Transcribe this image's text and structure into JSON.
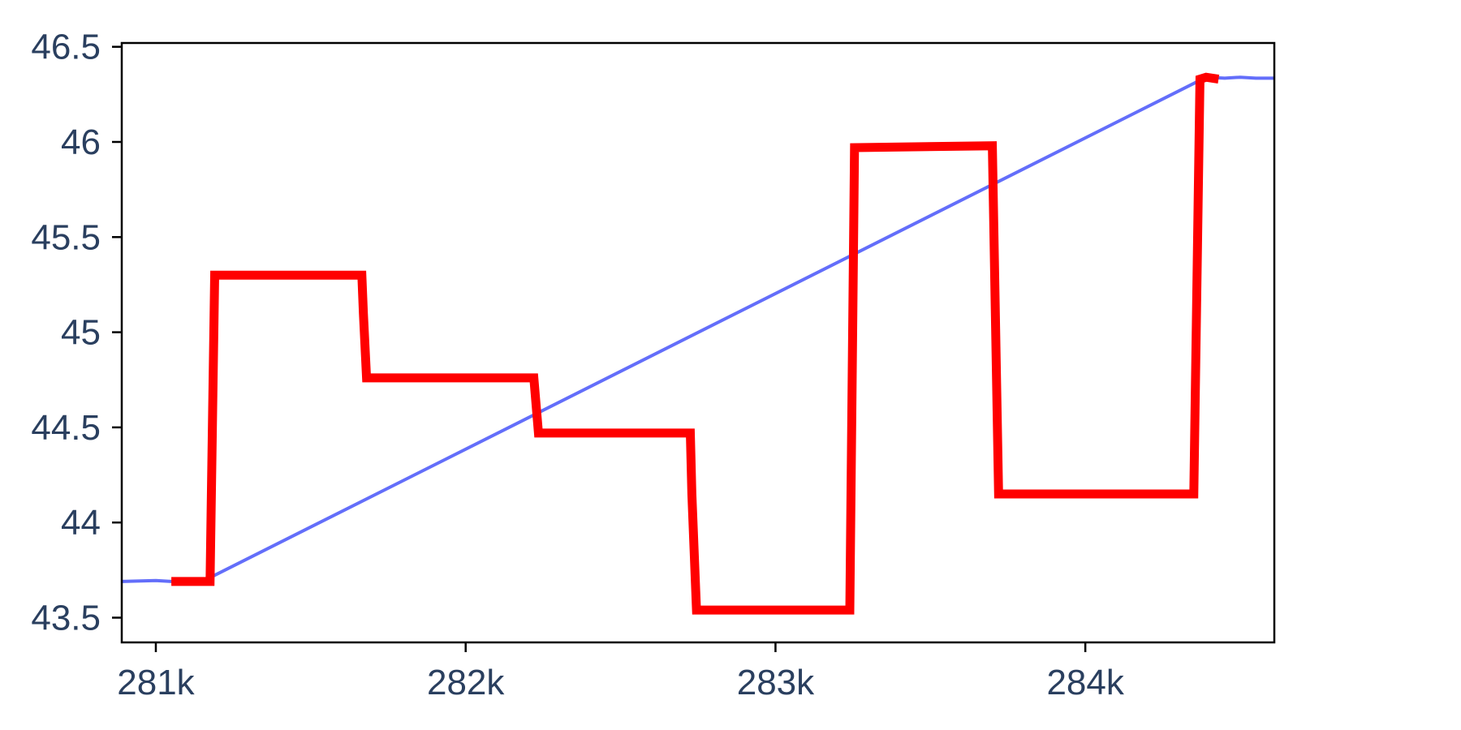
{
  "chart_data": {
    "type": "line",
    "title": "",
    "xlabel": "",
    "ylabel": "",
    "xlim": [
      280890,
      284610
    ],
    "ylim": [
      43.37,
      46.52
    ],
    "x_ticks": [
      {
        "value": 281000,
        "label": "281k"
      },
      {
        "value": 282000,
        "label": "282k"
      },
      {
        "value": 283000,
        "label": "283k"
      },
      {
        "value": 284000,
        "label": "284k"
      }
    ],
    "y_ticks": [
      {
        "value": 43.5,
        "label": "43.5"
      },
      {
        "value": 44,
        "label": "44"
      },
      {
        "value": 44.5,
        "label": "44.5"
      },
      {
        "value": 45,
        "label": "45"
      },
      {
        "value": 45.5,
        "label": "45.5"
      },
      {
        "value": 46,
        "label": "46"
      },
      {
        "value": 46.5,
        "label": "46.5"
      }
    ],
    "grid": false,
    "legend": "none",
    "series": [
      {
        "color": "#636efa",
        "width": "thin",
        "x": [
          280890,
          281000,
          281050,
          281100,
          281150,
          284390,
          284450,
          284500,
          284550,
          284610
        ],
        "y": [
          43.69,
          43.695,
          43.69,
          43.69,
          43.69,
          46.34,
          46.335,
          46.34,
          46.335,
          46.335
        ]
      },
      {
        "color": "#ff0000",
        "width": "thick",
        "x": [
          281050,
          281175,
          281190,
          281665,
          281670,
          281680,
          282220,
          282235,
          282725,
          282730,
          282745,
          283240,
          283255,
          283700,
          283720,
          284350,
          284370,
          284390,
          284430
        ],
        "y": [
          43.69,
          43.69,
          45.3,
          45.3,
          45.1,
          44.76,
          44.76,
          44.47,
          44.47,
          44.15,
          43.54,
          43.54,
          45.97,
          45.98,
          44.15,
          44.15,
          46.33,
          46.34,
          46.33
        ]
      }
    ]
  }
}
